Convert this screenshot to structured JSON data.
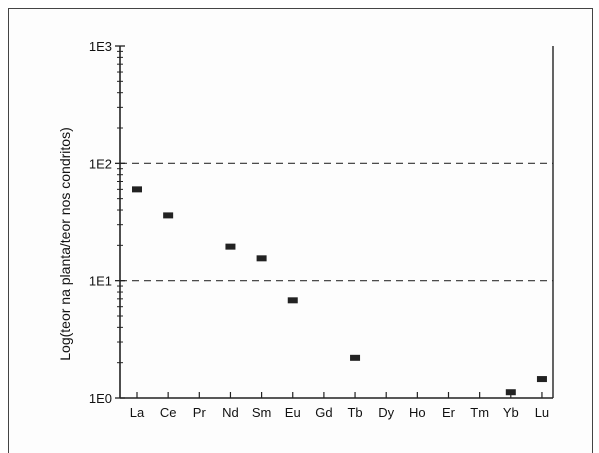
{
  "chart_data": {
    "type": "scatter",
    "title": "",
    "xlabel": "",
    "ylabel": "Log(teor na planta/teor nos condritos)",
    "yscale": "log",
    "ylim": [
      1,
      1000
    ],
    "categories": [
      "La",
      "Ce",
      "Pr",
      "Nd",
      "Sm",
      "Eu",
      "Gd",
      "Tb",
      "Dy",
      "Ho",
      "Er",
      "Tm",
      "Yb",
      "Lu"
    ],
    "y_ticks": [
      {
        "value": 1,
        "label": "1E0"
      },
      {
        "value": 10,
        "label": "1E1"
      },
      {
        "value": 100,
        "label": "1E2"
      },
      {
        "value": 1000,
        "label": "1E3"
      }
    ],
    "dashed_gridlines_at": [
      10,
      100
    ],
    "points": [
      {
        "x": "La",
        "y": 60
      },
      {
        "x": "Ce",
        "y": 36
      },
      {
        "x": "Nd",
        "y": 19.5
      },
      {
        "x": "Sm",
        "y": 15.5
      },
      {
        "x": "Eu",
        "y": 6.8
      },
      {
        "x": "Tb",
        "y": 2.2
      },
      {
        "x": "Yb",
        "y": 1.12
      },
      {
        "x": "Lu",
        "y": 1.45
      }
    ],
    "marker_color": "#222222"
  }
}
